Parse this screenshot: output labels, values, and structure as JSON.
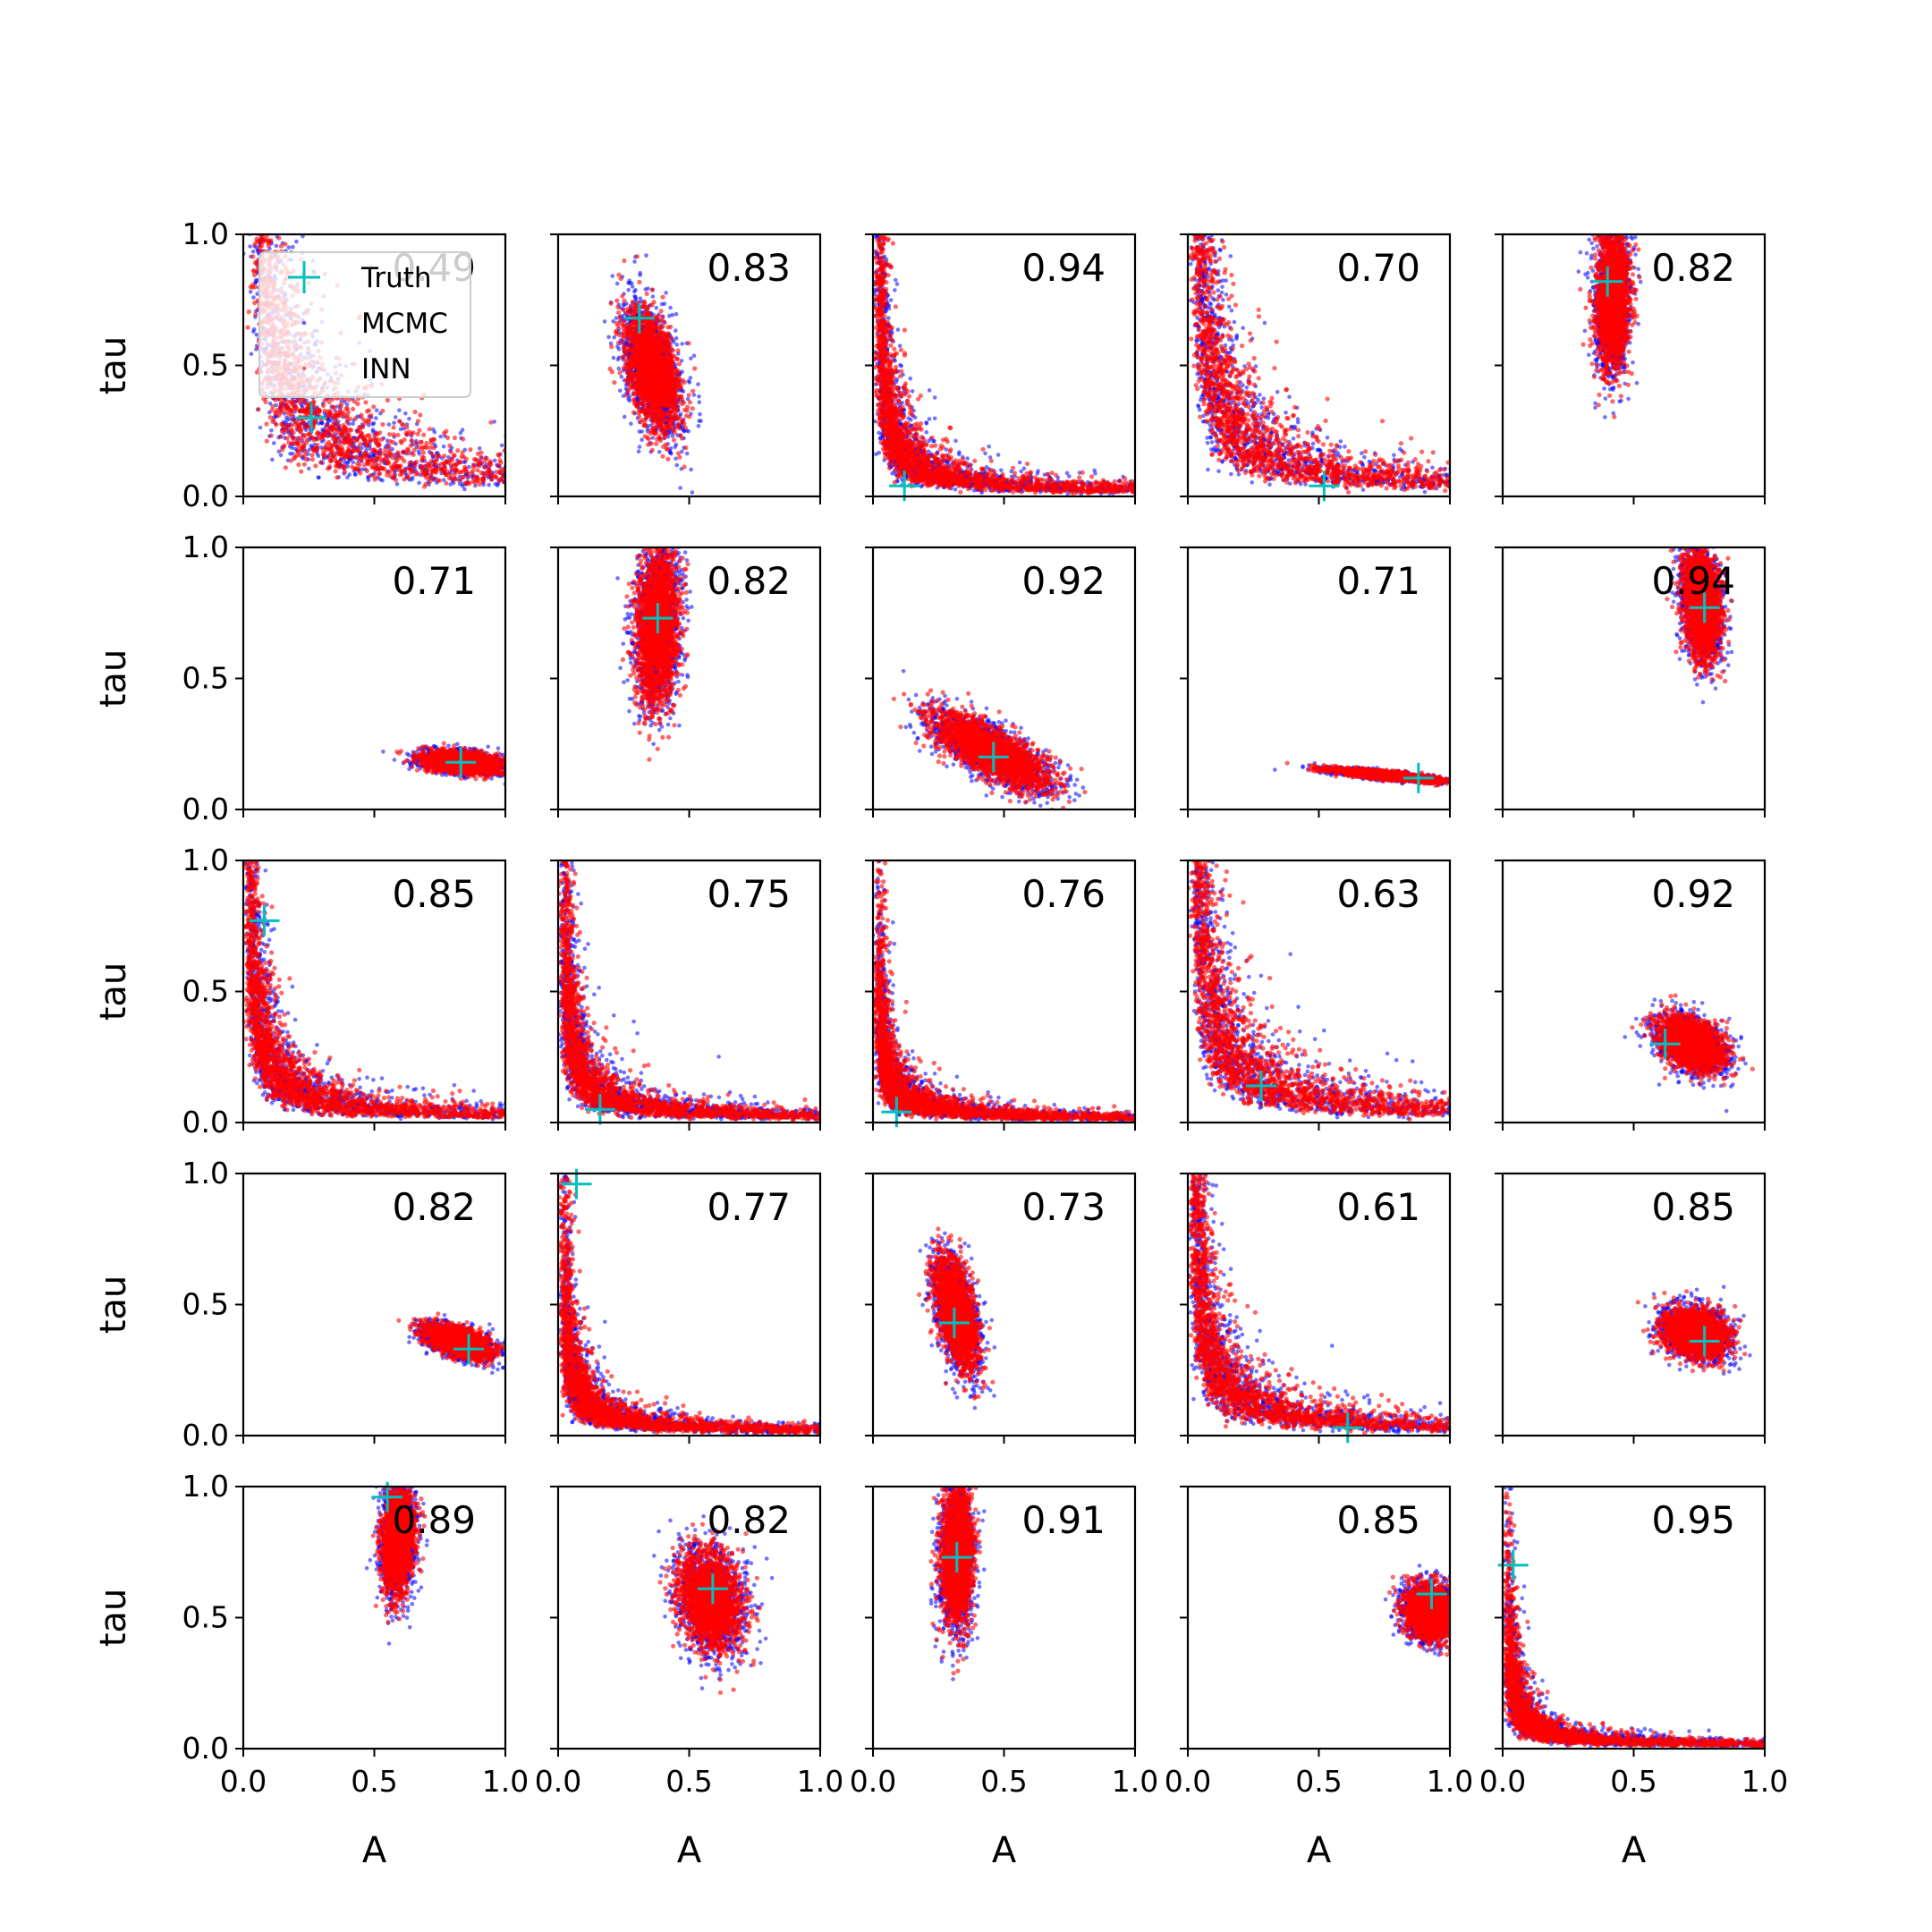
{
  "figure": {
    "xlabel": "A",
    "ylabel": "tau",
    "xlim": [
      0,
      1
    ],
    "ylim": [
      0,
      1
    ],
    "xticks": [
      "0.0",
      "0.5",
      "1.0"
    ],
    "yticks": [
      "0.0",
      "0.5",
      "1.0"
    ],
    "legend": {
      "placement": "upper-left of first panel",
      "entries": [
        {
          "label": "Truth",
          "marker": "plus",
          "color": "#00bfbf"
        },
        {
          "label": "MCMC",
          "marker": "dot",
          "color": "#0000ff"
        },
        {
          "label": "INN",
          "marker": "dot",
          "color": "#ff0000"
        }
      ]
    },
    "colors": {
      "truth": "#00bfbf",
      "mcmc": "#0000ff",
      "inn": "#ff0000"
    }
  },
  "chart_data": [
    {
      "type": "scatter",
      "score": "0.49",
      "truth": [
        0.26,
        0.3
      ],
      "shape": "banana",
      "shape_params": {
        "a": 0.08
      }
    },
    {
      "type": "scatter",
      "score": "0.83",
      "truth": [
        0.31,
        0.68
      ],
      "shape": "blob",
      "shape_params": {
        "mx": 0.36,
        "my": 0.48,
        "sx": 0.05,
        "sy": 0.11,
        "rho": -0.45
      }
    },
    {
      "type": "scatter",
      "score": "0.94",
      "truth": [
        0.12,
        0.04
      ],
      "shape": "banana",
      "shape_params": {
        "a": 0.02
      }
    },
    {
      "type": "scatter",
      "score": "0.70",
      "truth": [
        0.52,
        0.04
      ],
      "shape": "banana",
      "shape_params": {
        "a": 0.05
      }
    },
    {
      "type": "scatter",
      "score": "0.82",
      "truth": [
        0.4,
        0.82
      ],
      "shape": "blob",
      "shape_params": {
        "mx": 0.42,
        "my": 0.75,
        "sx": 0.03,
        "sy": 0.13,
        "rho": 0.1
      }
    },
    {
      "type": "scatter",
      "score": "0.71",
      "truth": [
        0.83,
        0.18
      ],
      "shape": "blob",
      "shape_params": {
        "mx": 0.84,
        "my": 0.18,
        "sx": 0.07,
        "sy": 0.02,
        "rho": -0.3
      }
    },
    {
      "type": "scatter",
      "score": "0.82",
      "truth": [
        0.38,
        0.73
      ],
      "shape": "blob",
      "shape_params": {
        "mx": 0.38,
        "my": 0.71,
        "sx": 0.04,
        "sy": 0.15,
        "rho": 0.1
      }
    },
    {
      "type": "scatter",
      "score": "0.92",
      "truth": [
        0.46,
        0.2
      ],
      "shape": "blob",
      "shape_params": {
        "mx": 0.45,
        "my": 0.22,
        "sx": 0.11,
        "sy": 0.07,
        "rho": -0.75
      }
    },
    {
      "type": "scatter",
      "score": "0.71",
      "truth": [
        0.88,
        0.12
      ],
      "shape": "blob",
      "shape_params": {
        "mx": 0.76,
        "my": 0.13,
        "sx": 0.1,
        "sy": 0.012,
        "rho": -0.8
      }
    },
    {
      "type": "scatter",
      "score": "0.94",
      "truth": [
        0.77,
        0.77
      ],
      "shape": "blob",
      "shape_params": {
        "mx": 0.76,
        "my": 0.78,
        "sx": 0.035,
        "sy": 0.1,
        "rho": -0.2
      }
    },
    {
      "type": "scatter",
      "score": "0.85",
      "truth": [
        0.08,
        0.77
      ],
      "shape": "banana",
      "shape_params": {
        "a": 0.025
      }
    },
    {
      "type": "scatter",
      "score": "0.75",
      "truth": [
        0.16,
        0.05
      ],
      "shape": "banana",
      "shape_params": {
        "a": 0.018
      }
    },
    {
      "type": "scatter",
      "score": "0.76",
      "truth": [
        0.09,
        0.04
      ],
      "shape": "banana",
      "shape_params": {
        "a": 0.012
      }
    },
    {
      "type": "scatter",
      "score": "0.63",
      "truth": [
        0.28,
        0.14
      ],
      "shape": "banana",
      "shape_params": {
        "a": 0.045
      }
    },
    {
      "type": "scatter",
      "score": "0.92",
      "truth": [
        0.62,
        0.3
      ],
      "shape": "blob",
      "shape_params": {
        "mx": 0.72,
        "my": 0.3,
        "sx": 0.06,
        "sy": 0.05,
        "rho": -0.4
      }
    },
    {
      "type": "scatter",
      "score": "0.82",
      "truth": [
        0.86,
        0.33
      ],
      "shape": "blob",
      "shape_params": {
        "mx": 0.82,
        "my": 0.36,
        "sx": 0.06,
        "sy": 0.03,
        "rho": -0.5
      }
    },
    {
      "type": "scatter",
      "score": "0.77",
      "truth": [
        0.07,
        0.96
      ],
      "shape": "banana",
      "shape_params": {
        "a": 0.014
      }
    },
    {
      "type": "scatter",
      "score": "0.73",
      "truth": [
        0.31,
        0.43
      ],
      "shape": "blob",
      "shape_params": {
        "mx": 0.32,
        "my": 0.47,
        "sx": 0.04,
        "sy": 0.1,
        "rho": -0.5
      }
    },
    {
      "type": "scatter",
      "score": "0.61",
      "truth": [
        0.61,
        0.03
      ],
      "shape": "banana",
      "shape_params": {
        "a": 0.03
      }
    },
    {
      "type": "scatter",
      "score": "0.85",
      "truth": [
        0.77,
        0.36
      ],
      "shape": "blob",
      "shape_params": {
        "mx": 0.74,
        "my": 0.39,
        "sx": 0.06,
        "sy": 0.045,
        "rho": -0.2
      }
    },
    {
      "type": "scatter",
      "score": "0.89",
      "truth": [
        0.55,
        0.96
      ],
      "shape": "blob",
      "shape_params": {
        "mx": 0.59,
        "my": 0.8,
        "sx": 0.03,
        "sy": 0.1,
        "rho": 0.1
      }
    },
    {
      "type": "scatter",
      "score": "0.82",
      "truth": [
        0.59,
        0.61
      ],
      "shape": "blob",
      "shape_params": {
        "mx": 0.58,
        "my": 0.57,
        "sx": 0.06,
        "sy": 0.09,
        "rho": -0.2
      }
    },
    {
      "type": "scatter",
      "score": "0.91",
      "truth": [
        0.32,
        0.73
      ],
      "shape": "blob",
      "shape_params": {
        "mx": 0.32,
        "my": 0.74,
        "sx": 0.03,
        "sy": 0.13,
        "rho": 0.0
      }
    },
    {
      "type": "scatter",
      "score": "0.85",
      "truth": [
        0.93,
        0.59
      ],
      "shape": "blob",
      "shape_params": {
        "mx": 0.93,
        "my": 0.52,
        "sx": 0.05,
        "sy": 0.05,
        "rho": -0.1
      }
    },
    {
      "type": "scatter",
      "score": "0.95",
      "truth": [
        0.04,
        0.7
      ],
      "shape": "banana",
      "shape_params": {
        "a": 0.01
      }
    }
  ]
}
